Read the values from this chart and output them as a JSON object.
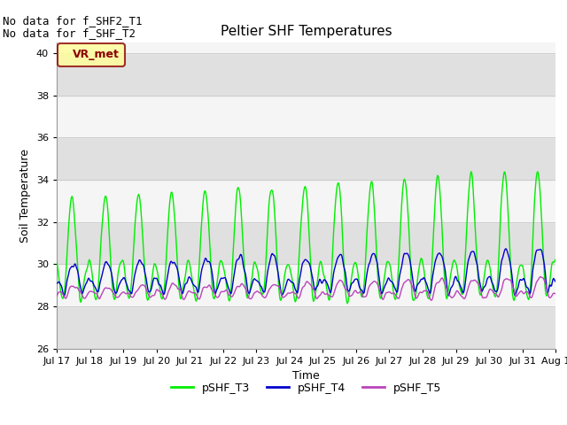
{
  "title": "Peltier SHF Temperatures",
  "xlabel": "Time",
  "ylabel": "Soil Temperature",
  "ylim": [
    26,
    40.5
  ],
  "xlim": [
    0,
    360
  ],
  "tick_labels": [
    "Jul 17",
    "Jul 18",
    "Jul 19",
    "Jul 20",
    "Jul 21",
    "Jul 22",
    "Jul 23",
    "Jul 24",
    "Jul 25",
    "Jul 26",
    "Jul 27",
    "Jul 28",
    "Jul 29",
    "Jul 30",
    "Jul 31",
    "Aug 1"
  ],
  "tick_positions": [
    0,
    24,
    48,
    72,
    96,
    120,
    144,
    168,
    192,
    216,
    240,
    264,
    288,
    312,
    336,
    360
  ],
  "yticks": [
    26,
    28,
    30,
    32,
    34,
    36,
    38,
    40
  ],
  "line_colors": {
    "pSHF_T3": "#00EE00",
    "pSHF_T4": "#0000CC",
    "pSHF_T5": "#BB44BB"
  },
  "line_widths": {
    "pSHF_T3": 1.0,
    "pSHF_T4": 1.0,
    "pSHF_T5": 1.0
  },
  "annotations": [
    "No data for f_SHF2_T1",
    "No data for f_SHF_T2"
  ],
  "legend_label": "VR_met",
  "legend_box_color": "#FFFF99",
  "legend_box_border": "#8B0000",
  "band_colors": [
    "#E0E0E0",
    "#F5F5F5"
  ],
  "title_fontsize": 11,
  "axis_fontsize": 8,
  "tick_fontsize": 8,
  "legend_fontsize": 9,
  "annot_fontsize": 9
}
